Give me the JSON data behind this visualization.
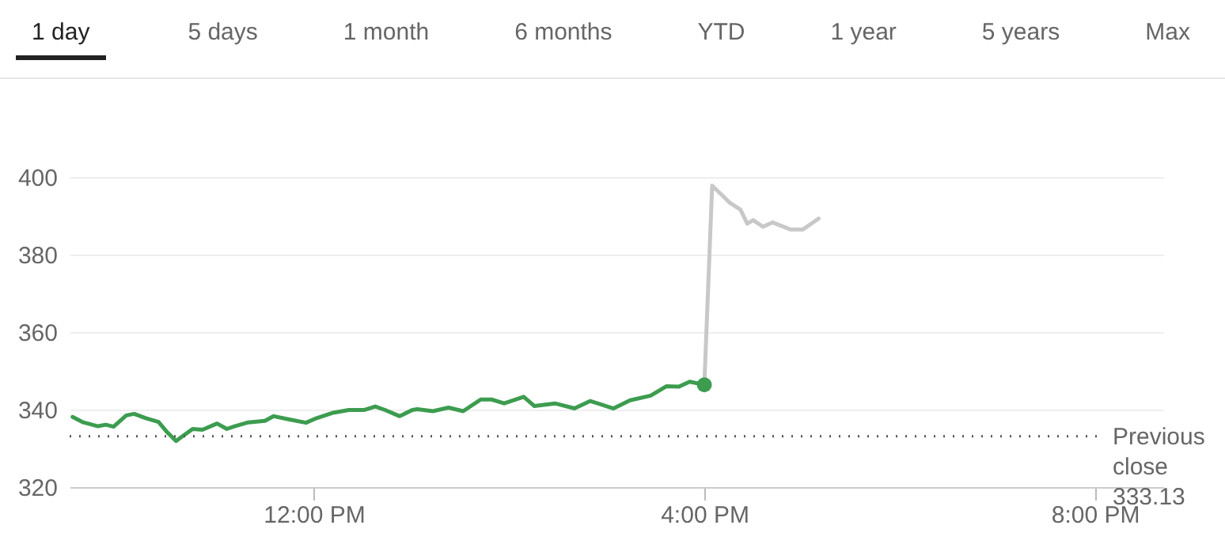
{
  "chart_data": {
    "type": "line",
    "annotations": [
      "1 day",
      "5 days",
      "1 month",
      "6 months",
      "YTD",
      "1 year",
      "5 years",
      "Max"
    ],
    "xlim": [
      9.5,
      20.7
    ],
    "xticks": [
      {
        "value": 12,
        "label": "12:00 PM"
      },
      {
        "value": 16,
        "label": "4:00 PM"
      },
      {
        "value": 20,
        "label": "8:00 PM"
      }
    ],
    "ylim": [
      320,
      400
    ],
    "yticks": [
      320,
      340,
      360,
      380,
      400
    ],
    "grid": "y",
    "series": [
      {
        "color": "#3c9c4f",
        "x": [
          9.53,
          9.64,
          9.79,
          9.87,
          9.95,
          10.08,
          10.16,
          10.28,
          10.41,
          10.49,
          10.59,
          10.65,
          10.76,
          10.86,
          11.01,
          11.11,
          11.19,
          11.33,
          11.5,
          11.59,
          11.74,
          11.92,
          12.03,
          12.2,
          12.36,
          12.52,
          12.63,
          12.73,
          12.88,
          13.01,
          13.06,
          13.22,
          13.38,
          13.53,
          13.71,
          13.82,
          13.95,
          14.15,
          14.26,
          14.47,
          14.67,
          14.83,
          15.07,
          15.24,
          15.45,
          15.61,
          15.74,
          15.85,
          16.0
        ],
        "values": [
          338.1,
          336.7,
          335.7,
          336.1,
          335.6,
          338.5,
          338.9,
          337.8,
          336.8,
          334.4,
          331.9,
          333.0,
          335.0,
          334.8,
          336.4,
          335.0,
          335.7,
          336.7,
          337.1,
          338.3,
          337.5,
          336.6,
          337.8,
          339.2,
          339.9,
          339.9,
          340.8,
          339.9,
          338.3,
          339.9,
          340.1,
          339.6,
          340.5,
          339.6,
          342.6,
          342.6,
          341.6,
          343.3,
          340.9,
          341.6,
          340.3,
          342.2,
          340.3,
          342.4,
          343.6,
          346.0,
          345.9,
          347.2,
          346.4
        ]
      },
      {
        "color": "#c8c8c8",
        "x": [
          16.0,
          16.08,
          16.26,
          16.37,
          16.44,
          16.5,
          16.6,
          16.7,
          16.88,
          17.01,
          17.17
        ],
        "values": [
          346.4,
          397.8,
          393.4,
          391.6,
          388.0,
          388.9,
          387.2,
          388.3,
          386.5,
          386.5,
          389.3
        ]
      },
      {
        "type": "scatter",
        "color": "#3c9c4f",
        "marker": "circle",
        "x": [
          16.0
        ],
        "values": [
          346.4
        ]
      }
    ],
    "ref_lines": [
      {
        "axis": "y",
        "value": 333.13,
        "label": "Previous close 333.13",
        "color": "#555555",
        "line_style": "dotted"
      }
    ]
  }
}
